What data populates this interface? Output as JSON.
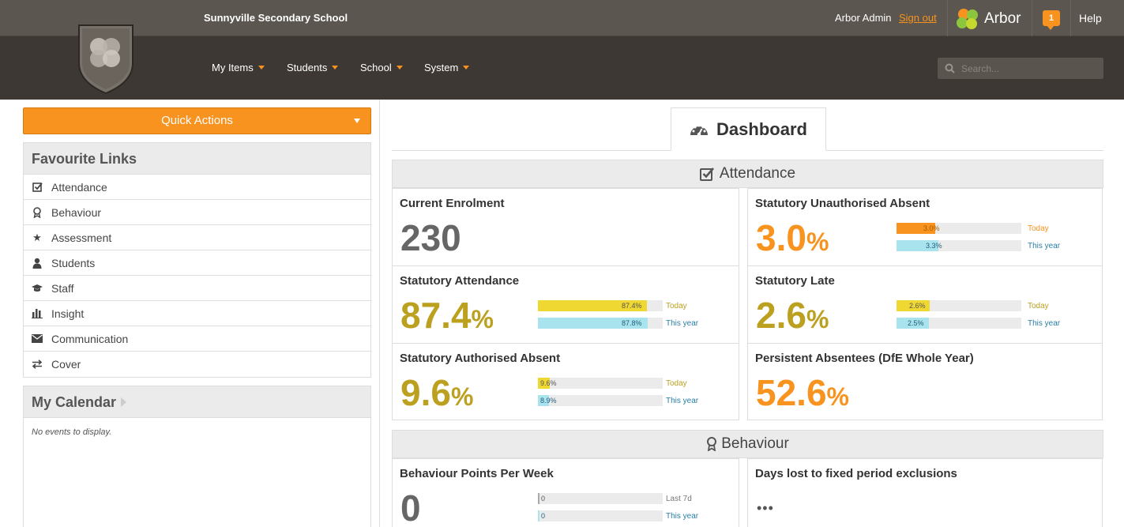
{
  "header": {
    "school_name": "Sunnyville Secondary School",
    "user_name": "Arbor Admin",
    "sign_out": "Sign out",
    "brand": "Arbor",
    "notification_count": "1",
    "help": "Help"
  },
  "nav": {
    "items": [
      "My Items",
      "Students",
      "School",
      "System"
    ],
    "search_placeholder": "Search..."
  },
  "sidebar": {
    "quick_actions": "Quick Actions",
    "favourite_links_title": "Favourite Links",
    "favourite_links": [
      {
        "label": "Attendance",
        "icon": "check-square-icon"
      },
      {
        "label": "Behaviour",
        "icon": "award-icon"
      },
      {
        "label": "Assessment",
        "icon": "star-icon"
      },
      {
        "label": "Students",
        "icon": "user-icon"
      },
      {
        "label": "Staff",
        "icon": "graduation-cap-icon"
      },
      {
        "label": "Insight",
        "icon": "bar-chart-icon"
      },
      {
        "label": "Communication",
        "icon": "envelope-icon"
      },
      {
        "label": "Cover",
        "icon": "exchange-icon"
      }
    ],
    "calendar_title": "My Calendar",
    "calendar_empty": "No events to display."
  },
  "main": {
    "dashboard_tab": "Dashboard",
    "attendance_section": "Attendance",
    "behaviour_section": "Behaviour",
    "labels": {
      "today": "Today",
      "this_year": "This year",
      "last_7d": "Last 7d"
    },
    "cards": {
      "current_enrolment": {
        "title": "Current Enrolment",
        "value": "230"
      },
      "unauth_absent": {
        "title": "Statutory Unauthorised Absent",
        "value": "3.0",
        "unit": "%",
        "today": "3.0%",
        "today_pct": 3.0,
        "year": "3.3%",
        "year_pct": 3.3
      },
      "statutory_attendance": {
        "title": "Statutory Attendance",
        "value": "87.4",
        "unit": "%",
        "today": "87.4%",
        "today_pct": 87.4,
        "year": "87.8%",
        "year_pct": 87.8
      },
      "statutory_late": {
        "title": "Statutory Late",
        "value": "2.6",
        "unit": "%",
        "today": "2.6%",
        "today_pct": 2.6,
        "year": "2.5%",
        "year_pct": 2.5
      },
      "auth_absent": {
        "title": "Statutory Authorised Absent",
        "value": "9.6",
        "unit": "%",
        "today": "9.6%",
        "today_pct": 9.6,
        "year": "8.9%",
        "year_pct": 8.9
      },
      "persistent_absentees": {
        "title": "Persistent Absentees (DfE Whole Year)",
        "value": "52.6",
        "unit": "%"
      },
      "behaviour_points": {
        "title": "Behaviour Points Per Week",
        "value": "0",
        "last7d": "0",
        "year": "0"
      },
      "days_lost": {
        "title": "Days lost to fixed period exclusions",
        "value": "•••"
      }
    }
  },
  "colors": {
    "accent": "#f7931e",
    "olive": "#bca020",
    "bar_yellow": "#f0d833",
    "bar_orange": "#f7931e",
    "bar_cyan": "#a9e3ee",
    "year_blue": "#2a7ea5"
  }
}
